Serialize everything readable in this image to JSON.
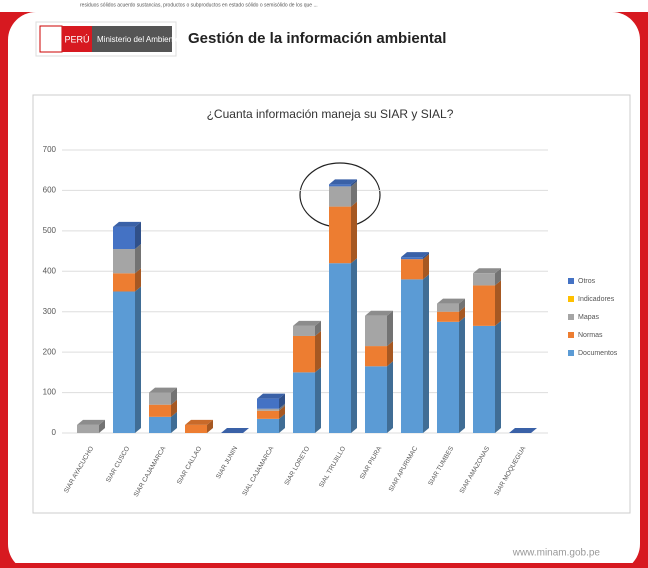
{
  "top_note": "residuos sólidos acuerdo sustancias, productos o subproductos en estado sólido o semisólido de los que ...",
  "header": {
    "brand": "PERÚ",
    "ministry": "Ministerio del Ambiente",
    "title": "Gestión de la información ambiental"
  },
  "footer": "www.minam.gob.pe",
  "chart_data": {
    "type": "bar",
    "stacked": true,
    "title": "¿Cuanta información maneja su SIAR y SIAL?",
    "categories": [
      "SIAR AYACUCHO",
      "SIAR CUSCO",
      "SIAR CAJAMARCA",
      "SIAR CALLAO",
      "SIAR JUNIN",
      "SIAL CAJAMARCA",
      "SIAR LORETO",
      "SIAL TRUJILLO",
      "SIAR PIURA",
      "SIAR APURIMAC",
      "SIAR TUMBES",
      "SIAR AMAZONAS",
      "SIAR MOQUEGUA"
    ],
    "series": [
      {
        "name": "Documentos",
        "color": "#5b9bd5",
        "values": [
          0,
          350,
          40,
          0,
          0,
          35,
          150,
          420,
          165,
          380,
          275,
          265,
          0
        ]
      },
      {
        "name": "Normas",
        "color": "#ed7d31",
        "values": [
          0,
          45,
          30,
          20,
          0,
          20,
          90,
          140,
          50,
          50,
          25,
          100,
          0
        ]
      },
      {
        "name": "Mapas",
        "color": "#a5a5a5",
        "values": [
          20,
          60,
          30,
          0,
          0,
          5,
          25,
          50,
          75,
          0,
          20,
          30,
          0
        ]
      },
      {
        "name": "Indicadores",
        "color": "#ffc000",
        "values": [
          0,
          0,
          0,
          0,
          0,
          0,
          0,
          0,
          0,
          0,
          0,
          0,
          0
        ]
      },
      {
        "name": "Otros",
        "color": "#4472c4",
        "values": [
          0,
          55,
          0,
          0,
          0,
          25,
          0,
          5,
          0,
          5,
          0,
          0,
          0
        ]
      }
    ],
    "ylim": [
      0,
      700
    ],
    "yticks": [
      0,
      100,
      200,
      300,
      400,
      500,
      600,
      700
    ],
    "grid": true,
    "legend": "right"
  }
}
